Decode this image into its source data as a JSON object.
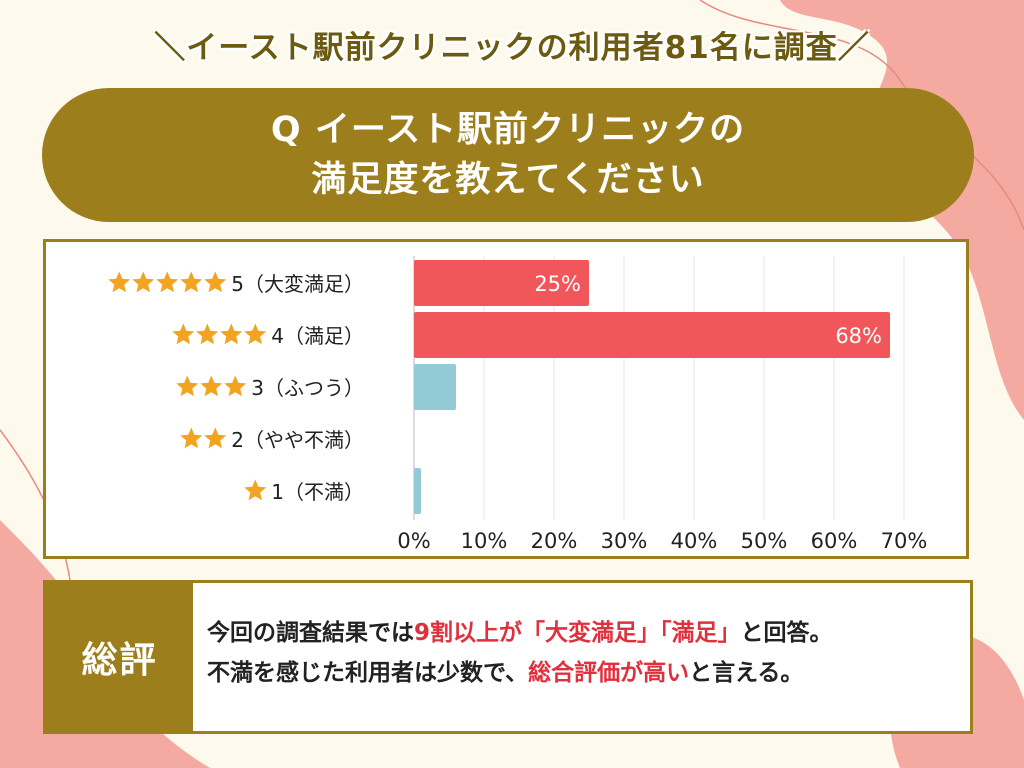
{
  "header": {
    "headline": "＼イースト駅前クリニックの利用者81名に調査／"
  },
  "question": {
    "line1": "Q イースト駅前クリニックの",
    "line2": "満足度を教えてください"
  },
  "chart_data": {
    "type": "bar",
    "orientation": "horizontal",
    "categories": [
      "5（大変満足）",
      "4（満足）",
      "3（ふつう）",
      "2（やや不満）",
      "1（不満）"
    ],
    "stars": [
      5,
      4,
      3,
      2,
      1
    ],
    "values": [
      25,
      68,
      6,
      0,
      1
    ],
    "data_labels": [
      "25%",
      "68%",
      "",
      "",
      ""
    ],
    "bar_colors": [
      "#f0565a",
      "#f0565a",
      "#92cad5",
      "#92cad5",
      "#92cad5"
    ],
    "star_color": "#f2a420",
    "xlim": [
      0,
      70
    ],
    "xticks": [
      "0%",
      "10%",
      "20%",
      "30%",
      "40%",
      "50%",
      "60%",
      "70%"
    ],
    "grid": true,
    "title": "",
    "xlabel": "",
    "ylabel": ""
  },
  "summary": {
    "label": "総評",
    "line1": [
      {
        "text": "今回の調査結果では",
        "highlight": false
      },
      {
        "text": "9割以上が「大変満足」「満足」",
        "highlight": true
      },
      {
        "text": "と回答。",
        "highlight": false
      }
    ],
    "line2": [
      {
        "text": "不満を感じた利用者は少数で、",
        "highlight": false
      },
      {
        "text": "総合評価が高い",
        "highlight": true
      },
      {
        "text": "と言える。",
        "highlight": false
      }
    ]
  },
  "colors": {
    "accent": "#9c7f1c",
    "headline": "#6b5a10",
    "highlight": "#e0303e",
    "background": "#fdf9ec",
    "blob": "#f4aaa0"
  }
}
